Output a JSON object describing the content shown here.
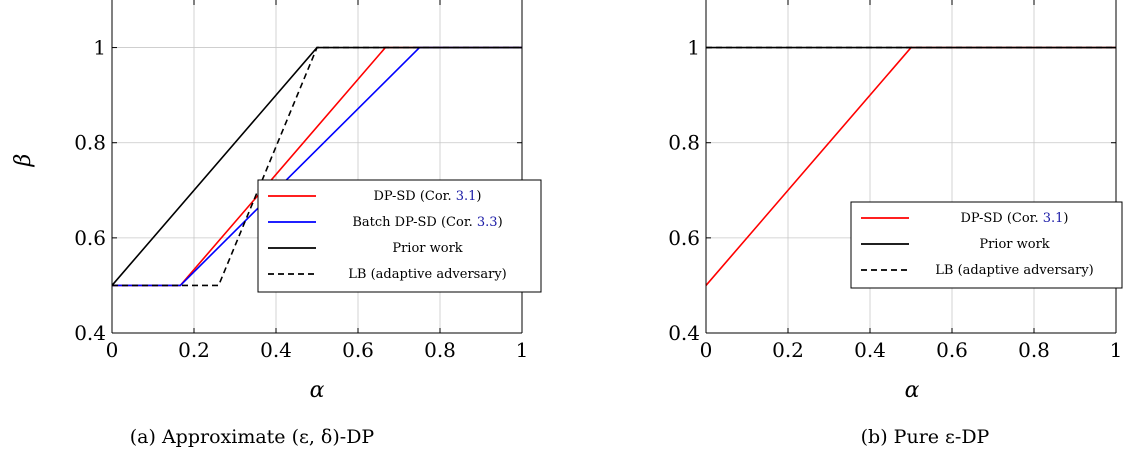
{
  "chart_data": [
    {
      "type": "line",
      "caption": "(a) Approximate (ε, δ)-DP",
      "xlabel": "α",
      "ylabel": "β",
      "xlim": [
        0,
        1
      ],
      "ylim": [
        0.4,
        1.1
      ],
      "xticks": [
        "0",
        "0.2",
        "0.4",
        "0.6",
        "0.8",
        "1"
      ],
      "xtick_values": [
        0,
        0.2,
        0.4,
        0.6,
        0.8,
        1
      ],
      "yticks": [
        "0.4",
        "0.6",
        "0.8",
        "1"
      ],
      "ytick_values": [
        0.4,
        0.6,
        0.8,
        1
      ],
      "grid": true,
      "legend_position": "bottom-right",
      "series": [
        {
          "name": "DP-SD (Cor. 3.1)",
          "name_main": "DP-SD (Cor. ",
          "name_ref": "3.1",
          "name_end": ")",
          "color": "#ff0000",
          "dash": "solid",
          "x": [
            0,
            0.1667,
            0.6667,
            1
          ],
          "y": [
            0.5,
            0.5,
            1,
            1
          ]
        },
        {
          "name": "Batch DP-SD (Cor. 3.3)",
          "name_main": "Batch DP-SD (Cor. ",
          "name_ref": "3.3",
          "name_end": ")",
          "color": "#0000ff",
          "dash": "solid",
          "x": [
            0,
            0.1667,
            0.75,
            1
          ],
          "y": [
            0.5,
            0.5,
            1,
            1
          ]
        },
        {
          "name": "Prior work",
          "name_main": "Prior work",
          "name_ref": "",
          "name_end": "",
          "color": "#000000",
          "dash": "solid",
          "x": [
            0,
            0.5,
            1
          ],
          "y": [
            0.5,
            1,
            1
          ]
        },
        {
          "name": "LB (adaptive adversary)",
          "name_main": "LB (adaptive adversary)",
          "name_ref": "",
          "name_end": "",
          "color": "#000000",
          "dash": "dashed",
          "x": [
            0,
            0.26,
            0.5,
            1
          ],
          "y": [
            0.5,
            0.5,
            1,
            1
          ]
        }
      ]
    },
    {
      "type": "line",
      "caption": "(b) Pure ε-DP",
      "xlabel": "α",
      "ylabel": "",
      "xlim": [
        0,
        1
      ],
      "ylim": [
        0.4,
        1.1
      ],
      "xticks": [
        "0",
        "0.2",
        "0.4",
        "0.6",
        "0.8",
        "1"
      ],
      "xtick_values": [
        0,
        0.2,
        0.4,
        0.6,
        0.8,
        1
      ],
      "yticks": [
        "0.4",
        "0.6",
        "0.8",
        "1"
      ],
      "ytick_values": [
        0.4,
        0.6,
        0.8,
        1
      ],
      "grid": true,
      "legend_position": "bottom-right",
      "series": [
        {
          "name": "DP-SD (Cor. 3.1)",
          "name_main": "DP-SD (Cor. ",
          "name_ref": "3.1",
          "name_end": ")",
          "color": "#ff0000",
          "dash": "solid",
          "x": [
            0,
            0.5,
            1
          ],
          "y": [
            0.5,
            1,
            1
          ]
        },
        {
          "name": "Prior work",
          "name_main": "Prior work",
          "name_ref": "",
          "name_end": "",
          "color": "#000000",
          "dash": "solid",
          "x": [
            0,
            1
          ],
          "y": [
            1,
            1
          ]
        },
        {
          "name": "LB (adaptive adversary)",
          "name_main": "LB (adaptive adversary)",
          "name_ref": "",
          "name_end": "",
          "color": "#000000",
          "dash": "dashed",
          "x": [
            0,
            1
          ],
          "y": [
            1,
            1
          ]
        }
      ]
    }
  ]
}
